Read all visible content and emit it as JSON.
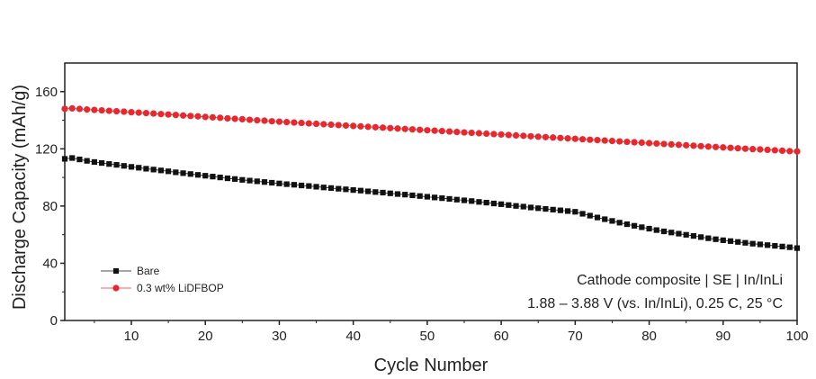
{
  "chart_data": {
    "type": "scatter",
    "xlabel": "Cycle Number",
    "ylabel": "Discharge Capacity (mAh/g)",
    "xlim": [
      1,
      100
    ],
    "ylim": [
      0,
      180
    ],
    "xticks": [
      10,
      20,
      30,
      40,
      50,
      60,
      70,
      80,
      90,
      100
    ],
    "yticks": [
      0,
      40,
      80,
      120,
      160
    ],
    "grid": false,
    "legend_position": "bottom-left",
    "annotations": [
      "Cathode composite | SE | In/InLi",
      "1.88 – 3.88 V (vs. In/InLi), 0.25 C, 25 °C"
    ],
    "series": [
      {
        "name": "Bare",
        "color": "#111111",
        "marker": "square",
        "x": [
          1,
          2,
          3,
          4,
          5,
          6,
          7,
          8,
          9,
          10,
          11,
          12,
          13,
          14,
          15,
          16,
          17,
          18,
          19,
          20,
          21,
          22,
          23,
          24,
          25,
          26,
          27,
          28,
          29,
          30,
          31,
          32,
          33,
          34,
          35,
          36,
          37,
          38,
          39,
          40,
          41,
          42,
          43,
          44,
          45,
          46,
          47,
          48,
          49,
          50,
          51,
          52,
          53,
          54,
          55,
          56,
          57,
          58,
          59,
          60,
          61,
          62,
          63,
          64,
          65,
          66,
          67,
          68,
          69,
          70,
          71,
          72,
          73,
          74,
          75,
          76,
          77,
          78,
          79,
          80,
          81,
          82,
          83,
          84,
          85,
          86,
          87,
          88,
          89,
          90,
          91,
          92,
          93,
          94,
          95,
          96,
          97,
          98,
          99,
          100
        ],
        "y": [
          113,
          113.6,
          112.6,
          111.6,
          110.8,
          110.1,
          109.4,
          108.8,
          108.1,
          107.4,
          106.8,
          106.1,
          105.5,
          104.9,
          104.3,
          103.6,
          103.0,
          102.4,
          101.8,
          101.2,
          100.6,
          100.0,
          99.4,
          98.9,
          98.3,
          97.8,
          97.3,
          96.8,
          96.3,
          95.8,
          95.3,
          94.9,
          94.4,
          94.0,
          93.5,
          93.0,
          92.6,
          92.1,
          91.7,
          91.2,
          90.8,
          90.3,
          89.8,
          89.4,
          88.9,
          88.4,
          88.0,
          87.5,
          87.0,
          86.5,
          86.0,
          85.5,
          85.0,
          84.5,
          84.0,
          83.5,
          82.9,
          82.4,
          81.8,
          81.3,
          80.7,
          80.1,
          79.6,
          79.0,
          78.5,
          78.0,
          77.5,
          77.0,
          76.5,
          76.0,
          74.6,
          73.3,
          72.0,
          70.8,
          69.6,
          68.4,
          67.3,
          66.2,
          65.2,
          64.2,
          63.2,
          62.3,
          61.5,
          60.7,
          59.9,
          59.1,
          58.3,
          57.5,
          56.8,
          56.1,
          55.5,
          54.9,
          54.3,
          53.7,
          53.2,
          52.7,
          52.2,
          51.7,
          51.2,
          50.6
        ]
      },
      {
        "name": "0.3 wt% LiDFBOP",
        "color": "#e8282d",
        "marker": "circle",
        "x": [
          1,
          2,
          3,
          4,
          5,
          6,
          7,
          8,
          9,
          10,
          11,
          12,
          13,
          14,
          15,
          16,
          17,
          18,
          19,
          20,
          21,
          22,
          23,
          24,
          25,
          26,
          27,
          28,
          29,
          30,
          31,
          32,
          33,
          34,
          35,
          36,
          37,
          38,
          39,
          40,
          41,
          42,
          43,
          44,
          45,
          46,
          47,
          48,
          49,
          50,
          51,
          52,
          53,
          54,
          55,
          56,
          57,
          58,
          59,
          60,
          61,
          62,
          63,
          64,
          65,
          66,
          67,
          68,
          69,
          70,
          71,
          72,
          73,
          74,
          75,
          76,
          77,
          78,
          79,
          80,
          81,
          82,
          83,
          84,
          85,
          86,
          87,
          88,
          89,
          90,
          91,
          92,
          93,
          94,
          95,
          96,
          97,
          98,
          99,
          100
        ],
        "y": [
          148,
          148.3,
          147.9,
          147.5,
          147.2,
          146.9,
          146.6,
          146.3,
          146.0,
          145.6,
          145.3,
          145.0,
          144.7,
          144.3,
          144.0,
          143.7,
          143.3,
          143.0,
          142.7,
          142.3,
          142.0,
          141.7,
          141.3,
          141.0,
          140.7,
          140.3,
          140.0,
          139.7,
          139.3,
          139.0,
          138.7,
          138.4,
          138.1,
          137.8,
          137.5,
          137.2,
          136.9,
          136.6,
          136.3,
          136.0,
          135.7,
          135.4,
          135.1,
          134.8,
          134.5,
          134.2,
          133.9,
          133.6,
          133.3,
          133.0,
          132.7,
          132.4,
          132.1,
          131.8,
          131.5,
          131.2,
          130.9,
          130.6,
          130.3,
          130.0,
          129.7,
          129.4,
          129.1,
          128.8,
          128.5,
          128.2,
          127.9,
          127.6,
          127.3,
          127.0,
          126.7,
          126.4,
          126.1,
          125.8,
          125.5,
          125.2,
          124.9,
          124.6,
          124.3,
          124.0,
          123.7,
          123.4,
          123.1,
          122.8,
          122.5,
          122.2,
          121.9,
          121.6,
          121.3,
          121.0,
          120.7,
          120.4,
          120.1,
          119.8,
          119.6,
          119.3,
          119.0,
          118.7,
          118.4,
          118.2
        ]
      }
    ]
  }
}
